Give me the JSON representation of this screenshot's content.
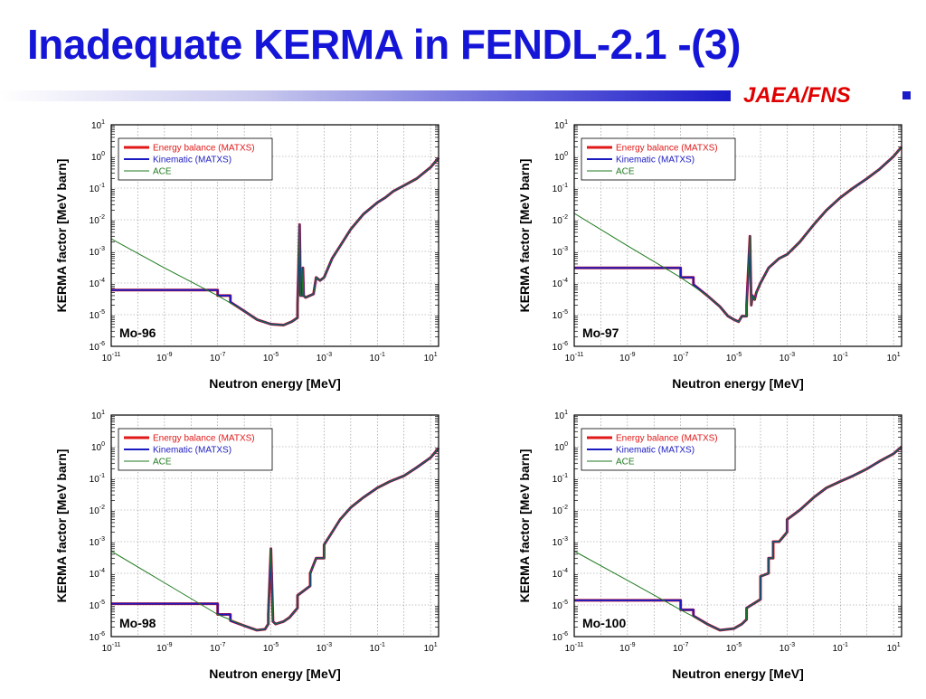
{
  "slide": {
    "title": "Inadequate KERMA in FENDL-2.1 -(3)",
    "brand": "JAEA/FNS",
    "colors": {
      "title": "#1515d8",
      "brand": "#e00000"
    }
  },
  "legend": [
    {
      "label": "Energy balance (MATXS)",
      "color": "#e01818"
    },
    {
      "label": "Kinematic (MATXS)",
      "color": "#1a1ac0"
    },
    {
      "label": "ACE",
      "color": "#1f7a1f"
    }
  ],
  "chart_data": [
    {
      "type": "line",
      "label": "Mo-96",
      "xlabel": "Neutron energy [MeV]",
      "ylabel": "KERMA factor [MeV barn]",
      "x_scale": "log",
      "y_scale": "log",
      "xlim": [
        1e-11,
        20
      ],
      "ylim": [
        1e-06,
        10
      ],
      "x_ticks": [
        "10-11",
        "10-9",
        "10-7",
        "10-5",
        "10-3",
        "10-1",
        "101"
      ],
      "y_ticks": [
        "10-6",
        "10-5",
        "10-4",
        "10-3",
        "10-2",
        "10-1",
        "100",
        "101"
      ],
      "grid": true,
      "legend_position": "top-left",
      "series": [
        {
          "name": "Energy balance (MATXS)",
          "x": [
            1e-11,
            1e-07,
            1e-07,
            3e-07,
            3e-07,
            1e-06,
            3e-06,
            1e-05,
            3e-05,
            6e-05,
            0.0001,
            0.0001,
            0.00012,
            0.00013,
            0.00015,
            0.00016,
            0.00017,
            0.0002,
            0.0004,
            0.0005,
            0.0007,
            0.001,
            0.002,
            0.005,
            0.01,
            0.03,
            0.1,
            0.2,
            0.4,
            1,
            3,
            10,
            20
          ],
          "y": [
            6e-05,
            6e-05,
            4e-05,
            4e-05,
            2.5e-05,
            1.3e-05,
            7e-06,
            5e-06,
            4.7e-06,
            6e-06,
            8e-06,
            2e-05,
            0.007,
            4e-05,
            4e-05,
            0.0003,
            4e-05,
            3.5e-05,
            4.5e-05,
            0.00015,
            0.00012,
            0.00015,
            0.0006,
            0.002,
            0.005,
            0.015,
            0.035,
            0.05,
            0.08,
            0.12,
            0.2,
            0.45,
            0.9
          ]
        },
        {
          "name": "Kinematic (MATXS)",
          "x": [
            1e-11,
            1e-07,
            1e-07,
            3e-07,
            3e-07,
            1e-06,
            3e-06,
            1e-05,
            3e-05,
            6e-05,
            0.0001,
            0.0001,
            0.00012,
            0.00013,
            0.00015,
            0.00016,
            0.00017,
            0.0002,
            0.0004,
            0.0005,
            0.0007,
            0.001,
            0.002,
            0.005,
            0.01,
            0.03,
            0.1,
            0.2,
            0.4,
            1,
            3,
            10,
            20
          ],
          "y": [
            6e-05,
            6e-05,
            4e-05,
            4e-05,
            2.5e-05,
            1.3e-05,
            7e-06,
            5e-06,
            4.7e-06,
            6e-06,
            8e-06,
            2e-05,
            0.007,
            4e-05,
            4e-05,
            0.0003,
            4e-05,
            3.5e-05,
            4.5e-05,
            0.00015,
            0.00012,
            0.00015,
            0.0006,
            0.002,
            0.005,
            0.015,
            0.035,
            0.05,
            0.08,
            0.12,
            0.2,
            0.45,
            0.9
          ]
        },
        {
          "name": "ACE",
          "x": [
            1e-11,
            1e-09,
            1e-07,
            1e-06,
            3e-06,
            1e-05,
            3e-05,
            6e-05,
            0.0001,
            0.0001,
            0.00012,
            0.00013,
            0.00015,
            0.00016,
            0.00017,
            0.0002,
            0.0004,
            0.0005,
            0.0007,
            0.001,
            0.002,
            0.005,
            0.01,
            0.03,
            0.1,
            0.2,
            0.4,
            1,
            3,
            10,
            20
          ],
          "y": [
            0.0025,
            0.0003,
            4e-05,
            1.3e-05,
            7e-06,
            5e-06,
            4.7e-06,
            6e-06,
            8e-06,
            2e-05,
            0.007,
            4e-05,
            4e-05,
            0.0003,
            4e-05,
            3.5e-05,
            4.5e-05,
            0.00015,
            0.00012,
            0.00015,
            0.0006,
            0.002,
            0.005,
            0.015,
            0.035,
            0.05,
            0.08,
            0.12,
            0.2,
            0.45,
            0.9
          ]
        }
      ]
    },
    {
      "type": "line",
      "label": "Mo-97",
      "xlabel": "Neutron energy [MeV]",
      "ylabel": "KERMA factor [MeV barn]",
      "x_scale": "log",
      "y_scale": "log",
      "xlim": [
        1e-11,
        20
      ],
      "ylim": [
        1e-06,
        10
      ],
      "x_ticks": [
        "10-11",
        "10-9",
        "10-7",
        "10-5",
        "10-3",
        "10-1",
        "101"
      ],
      "y_ticks": [
        "10-6",
        "10-5",
        "10-4",
        "10-3",
        "10-2",
        "10-1",
        "100",
        "101"
      ],
      "grid": true,
      "legend_position": "top-left",
      "series": [
        {
          "name": "Energy balance (MATXS)",
          "x": [
            1e-11,
            1e-07,
            1e-07,
            3e-07,
            3e-07,
            1e-06,
            3e-06,
            6e-06,
            1e-05,
            1.5e-05,
            2e-05,
            3e-05,
            3e-05,
            4e-05,
            4.5e-05,
            5e-05,
            6e-05,
            7e-05,
            0.0001,
            0.0002,
            0.0005,
            0.001,
            0.003,
            0.01,
            0.03,
            0.1,
            0.3,
            1,
            3,
            10,
            20
          ],
          "y": [
            0.0003,
            0.0003,
            0.00015,
            0.00015,
            9e-05,
            4e-05,
            1.8e-05,
            9e-06,
            7e-06,
            6e-06,
            9e-06,
            9e-06,
            2e-05,
            0.003,
            2e-05,
            4e-05,
            3e-05,
            5e-05,
            0.0001,
            0.0003,
            0.0006,
            0.0008,
            0.002,
            0.007,
            0.02,
            0.05,
            0.1,
            0.2,
            0.4,
            1,
            2
          ]
        },
        {
          "name": "Kinematic (MATXS)",
          "x": [
            1e-11,
            1e-07,
            1e-07,
            3e-07,
            3e-07,
            1e-06,
            3e-06,
            6e-06,
            1e-05,
            1.5e-05,
            2e-05,
            3e-05,
            3e-05,
            4e-05,
            4.5e-05,
            5e-05,
            6e-05,
            7e-05,
            0.0001,
            0.0002,
            0.0005,
            0.001,
            0.003,
            0.01,
            0.03,
            0.1,
            0.3,
            1,
            3,
            10,
            20
          ],
          "y": [
            0.0003,
            0.0003,
            0.00015,
            0.00015,
            9e-05,
            4e-05,
            1.8e-05,
            9e-06,
            7e-06,
            6e-06,
            9e-06,
            9e-06,
            2e-05,
            0.003,
            2e-05,
            4e-05,
            3e-05,
            5e-05,
            0.0001,
            0.0003,
            0.0006,
            0.0008,
            0.002,
            0.007,
            0.02,
            0.05,
            0.1,
            0.2,
            0.4,
            1,
            2
          ]
        },
        {
          "name": "ACE",
          "x": [
            1e-11,
            1e-09,
            1e-07,
            1e-06,
            3e-06,
            6e-06,
            1e-05,
            1.5e-05,
            2e-05,
            3e-05,
            3e-05,
            4e-05,
            4.5e-05,
            5e-05,
            6e-05,
            7e-05,
            0.0001,
            0.0002,
            0.0005,
            0.001,
            0.003,
            0.01,
            0.03,
            0.1,
            0.3,
            1,
            3,
            10,
            20
          ],
          "y": [
            0.016,
            0.0015,
            0.00015,
            4e-05,
            1.8e-05,
            9e-06,
            7e-06,
            6e-06,
            9e-06,
            9e-06,
            2e-05,
            0.003,
            2e-05,
            4e-05,
            3e-05,
            5e-05,
            0.0001,
            0.0003,
            0.0006,
            0.0008,
            0.002,
            0.007,
            0.02,
            0.05,
            0.1,
            0.2,
            0.4,
            1,
            2
          ]
        }
      ]
    },
    {
      "type": "line",
      "label": "Mo-98",
      "xlabel": "Neutron energy [MeV]",
      "ylabel": "KERMA factor [MeV barn]",
      "x_scale": "log",
      "y_scale": "log",
      "xlim": [
        1e-11,
        20
      ],
      "ylim": [
        1e-06,
        10
      ],
      "x_ticks": [
        "10-11",
        "10-9",
        "10-7",
        "10-5",
        "10-3",
        "10-1",
        "101"
      ],
      "y_ticks": [
        "10-6",
        "10-5",
        "10-4",
        "10-3",
        "10-2",
        "10-1",
        "100",
        "101"
      ],
      "grid": true,
      "legend_position": "top-left",
      "series": [
        {
          "name": "Energy balance (MATXS)",
          "x": [
            1e-11,
            1e-07,
            1e-07,
            3e-07,
            3e-07,
            1e-06,
            3e-06,
            6e-06,
            8e-06,
            8e-06,
            1e-05,
            1.2e-05,
            1.5e-05,
            3e-05,
            5e-05,
            0.0001,
            0.0001,
            0.0003,
            0.0003,
            0.0005,
            0.001,
            0.001,
            0.002,
            0.004,
            0.01,
            0.03,
            0.1,
            0.3,
            1,
            3,
            10,
            20
          ],
          "y": [
            1.1e-05,
            1.1e-05,
            5e-06,
            5e-06,
            3.2e-06,
            2.2e-06,
            1.6e-06,
            1.7e-06,
            2.5e-06,
            5e-06,
            0.0006,
            3e-06,
            2.5e-06,
            3e-06,
            4e-06,
            8e-06,
            2e-05,
            4e-05,
            0.0001,
            0.0003,
            0.0003,
            0.0008,
            0.002,
            0.005,
            0.012,
            0.025,
            0.05,
            0.08,
            0.12,
            0.22,
            0.45,
            0.9
          ]
        },
        {
          "name": "Kinematic (MATXS)",
          "x": [
            1e-11,
            1e-07,
            1e-07,
            3e-07,
            3e-07,
            1e-06,
            3e-06,
            6e-06,
            8e-06,
            8e-06,
            1e-05,
            1.2e-05,
            1.5e-05,
            3e-05,
            5e-05,
            0.0001,
            0.0001,
            0.0003,
            0.0003,
            0.0005,
            0.001,
            0.001,
            0.002,
            0.004,
            0.01,
            0.03,
            0.1,
            0.3,
            1,
            3,
            10,
            20
          ],
          "y": [
            1.1e-05,
            1.1e-05,
            5e-06,
            5e-06,
            3.2e-06,
            2.2e-06,
            1.6e-06,
            1.7e-06,
            2.5e-06,
            5e-06,
            0.0006,
            3e-06,
            2.5e-06,
            3e-06,
            4e-06,
            8e-06,
            2e-05,
            4e-05,
            0.0001,
            0.0003,
            0.0003,
            0.0008,
            0.002,
            0.005,
            0.012,
            0.025,
            0.05,
            0.08,
            0.12,
            0.22,
            0.45,
            0.9
          ]
        },
        {
          "name": "ACE",
          "x": [
            1e-11,
            1e-09,
            1e-07,
            1e-06,
            3e-06,
            6e-06,
            8e-06,
            8e-06,
            1e-05,
            1.2e-05,
            1.5e-05,
            3e-05,
            5e-05,
            0.0001,
            0.0001,
            0.0003,
            0.0003,
            0.0005,
            0.001,
            0.001,
            0.002,
            0.004,
            0.01,
            0.03,
            0.1,
            0.3,
            1,
            3,
            10,
            20
          ],
          "y": [
            0.0005,
            5e-05,
            5e-06,
            2.2e-06,
            1.6e-06,
            1.7e-06,
            2.5e-06,
            5e-06,
            0.0006,
            3e-06,
            2.5e-06,
            3e-06,
            4e-06,
            8e-06,
            2e-05,
            4e-05,
            0.0001,
            0.0003,
            0.0003,
            0.0008,
            0.002,
            0.005,
            0.012,
            0.025,
            0.05,
            0.08,
            0.12,
            0.22,
            0.45,
            0.9
          ]
        }
      ]
    },
    {
      "type": "line",
      "label": "Mo-100",
      "xlabel": "Neutron energy [MeV]",
      "ylabel": "KERMA factor [MeV barn]",
      "x_scale": "log",
      "y_scale": "log",
      "xlim": [
        1e-11,
        20
      ],
      "ylim": [
        1e-06,
        10
      ],
      "x_ticks": [
        "10-11",
        "10-9",
        "10-7",
        "10-5",
        "10-3",
        "10-1",
        "101"
      ],
      "y_ticks": [
        "10-6",
        "10-5",
        "10-4",
        "10-3",
        "10-2",
        "10-1",
        "100",
        "101"
      ],
      "grid": true,
      "legend_position": "top-left",
      "series": [
        {
          "name": "Energy balance (MATXS)",
          "x": [
            1e-11,
            1e-07,
            1e-07,
            3e-07,
            3e-07,
            1e-06,
            3e-06,
            1e-05,
            2e-05,
            3e-05,
            3e-05,
            0.0001,
            0.0001,
            0.0002,
            0.0002,
            0.0003,
            0.0003,
            0.0005,
            0.001,
            0.001,
            0.003,
            0.01,
            0.03,
            0.1,
            0.3,
            1,
            3,
            10,
            20
          ],
          "y": [
            1.4e-05,
            1.4e-05,
            7e-06,
            7e-06,
            4.5e-06,
            2.5e-06,
            1.6e-06,
            1.8e-06,
            2.5e-06,
            3.5e-06,
            8e-06,
            1.5e-05,
            8e-05,
            0.0001,
            0.0003,
            0.0003,
            0.001,
            0.001,
            0.002,
            0.005,
            0.01,
            0.025,
            0.05,
            0.08,
            0.12,
            0.2,
            0.35,
            0.6,
            1
          ]
        },
        {
          "name": "Kinematic (MATXS)",
          "x": [
            1e-11,
            1e-07,
            1e-07,
            3e-07,
            3e-07,
            1e-06,
            3e-06,
            1e-05,
            2e-05,
            3e-05,
            3e-05,
            0.0001,
            0.0001,
            0.0002,
            0.0002,
            0.0003,
            0.0003,
            0.0005,
            0.001,
            0.001,
            0.003,
            0.01,
            0.03,
            0.1,
            0.3,
            1,
            3,
            10,
            20
          ],
          "y": [
            1.4e-05,
            1.4e-05,
            7e-06,
            7e-06,
            4.5e-06,
            2.5e-06,
            1.6e-06,
            1.8e-06,
            2.5e-06,
            3.5e-06,
            8e-06,
            1.5e-05,
            8e-05,
            0.0001,
            0.0003,
            0.0003,
            0.001,
            0.001,
            0.002,
            0.005,
            0.01,
            0.025,
            0.05,
            0.08,
            0.12,
            0.2,
            0.35,
            0.6,
            1
          ]
        },
        {
          "name": "ACE",
          "x": [
            1e-11,
            1e-09,
            1e-07,
            1e-06,
            3e-06,
            1e-05,
            2e-05,
            3e-05,
            3e-05,
            0.0001,
            0.0001,
            0.0002,
            0.0002,
            0.0003,
            0.0003,
            0.0005,
            0.001,
            0.001,
            0.003,
            0.01,
            0.03,
            0.1,
            0.3,
            1,
            3,
            10,
            20
          ],
          "y": [
            0.0005,
            6e-05,
            7e-06,
            2.5e-06,
            1.6e-06,
            1.8e-06,
            2.5e-06,
            3.5e-06,
            8e-06,
            1.5e-05,
            8e-05,
            0.0001,
            0.0003,
            0.0003,
            0.001,
            0.001,
            0.002,
            0.005,
            0.01,
            0.025,
            0.05,
            0.08,
            0.12,
            0.2,
            0.35,
            0.6,
            1
          ]
        }
      ]
    }
  ]
}
